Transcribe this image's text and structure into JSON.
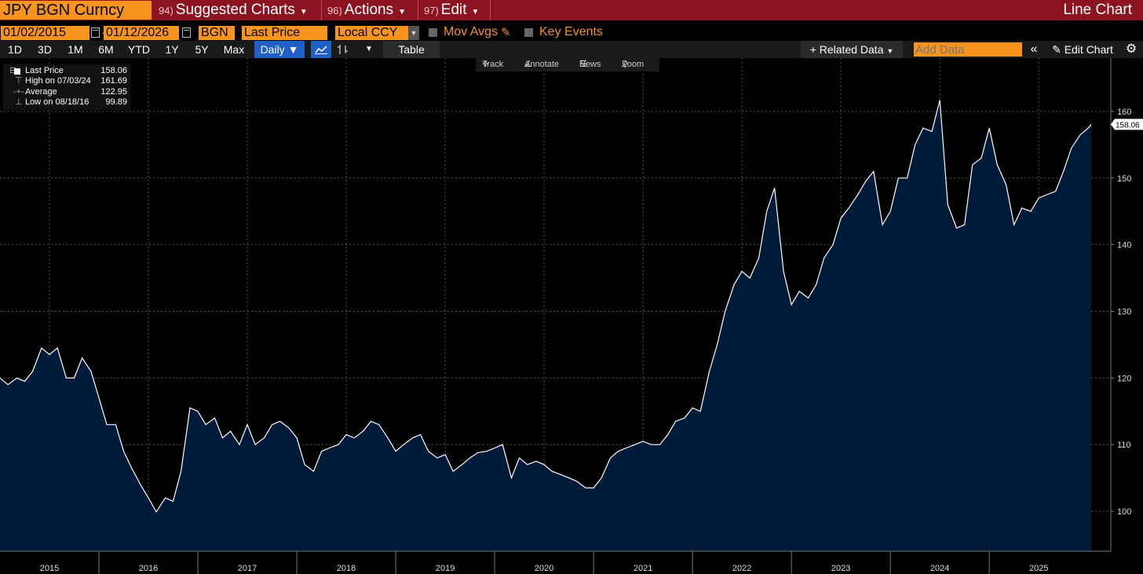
{
  "header": {
    "ticker": "JPY BGN Curncy",
    "menus": [
      {
        "num": "94)",
        "label": "Suggested Charts"
      },
      {
        "num": "96)",
        "label": "Actions"
      },
      {
        "num": "97)",
        "label": "Edit"
      }
    ],
    "chart_type": "Line Chart"
  },
  "controls": {
    "start_date": "01/02/2015",
    "end_date": "01/12/2026",
    "source": "BGN",
    "field": "Last Price",
    "currency": "Local CCY",
    "mov_avgs": "Mov Avgs",
    "key_events": "Key Events"
  },
  "toolbar": {
    "ranges": [
      "1D",
      "3D",
      "1M",
      "6M",
      "YTD",
      "1Y",
      "5Y",
      "Max"
    ],
    "frequency": "Daily",
    "table": "Table",
    "related_data": "Related Data",
    "add_data_placeholder": "Add Data",
    "edit_chart": "Edit Chart"
  },
  "chart_tools": {
    "track": "Track",
    "annotate": "Annotate",
    "news": "News",
    "zoom": "Zoom"
  },
  "legend": {
    "rows": [
      {
        "label": "Last Price",
        "value": "158.06"
      },
      {
        "label": "High on 07/03/24",
        "value": "161.69"
      },
      {
        "label": "Average",
        "value": "122.95"
      },
      {
        "label": "Low on 08/18/16",
        "value": "99.89"
      }
    ]
  },
  "colors": {
    "header_bg": "#8b1420",
    "accent": "#f7941d",
    "area_fill": "#001a3a",
    "line": "#ffffff",
    "selected": "#1f5fc6"
  },
  "chart_data": {
    "type": "area",
    "title": "JPY BGN Curncy",
    "ylim": [
      94,
      168
    ],
    "xlim": [
      2015.0,
      2026.03
    ],
    "yticks": [
      100,
      110,
      120,
      130,
      140,
      150,
      160
    ],
    "x_ticks": [
      "2015",
      "2016",
      "2017",
      "2018",
      "2019",
      "2020",
      "2021",
      "2022",
      "2023",
      "2024",
      "2025"
    ],
    "x_tick_positions": [
      2015.5,
      2016.5,
      2017.5,
      2018.5,
      2019.5,
      2020.5,
      2021.5,
      2022.5,
      2023.5,
      2024.5,
      2025.5
    ],
    "year_boundaries": [
      2016,
      2017,
      2018,
      2019,
      2020,
      2021,
      2022,
      2023,
      2024,
      2025
    ],
    "grid": true,
    "last_value": "158.06",
    "series": [
      {
        "name": "Last Price",
        "points": [
          [
            2015.0,
            120.0
          ],
          [
            2015.08,
            119.0
          ],
          [
            2015.17,
            120.0
          ],
          [
            2015.25,
            119.5
          ],
          [
            2015.33,
            121.0
          ],
          [
            2015.42,
            124.5
          ],
          [
            2015.5,
            123.5
          ],
          [
            2015.58,
            124.5
          ],
          [
            2015.67,
            120.0
          ],
          [
            2015.75,
            120.0
          ],
          [
            2015.83,
            123.0
          ],
          [
            2015.92,
            121.0
          ],
          [
            2016.0,
            117.0
          ],
          [
            2016.08,
            113.0
          ],
          [
            2016.17,
            113.0
          ],
          [
            2016.25,
            109.0
          ],
          [
            2016.33,
            106.5
          ],
          [
            2016.42,
            104.0
          ],
          [
            2016.5,
            102.0
          ],
          [
            2016.58,
            99.9
          ],
          [
            2016.67,
            102.0
          ],
          [
            2016.75,
            101.5
          ],
          [
            2016.83,
            106.0
          ],
          [
            2016.92,
            115.5
          ],
          [
            2017.0,
            115.0
          ],
          [
            2017.08,
            113.0
          ],
          [
            2017.17,
            114.0
          ],
          [
            2017.25,
            111.0
          ],
          [
            2017.33,
            112.0
          ],
          [
            2017.42,
            110.0
          ],
          [
            2017.5,
            113.0
          ],
          [
            2017.58,
            110.0
          ],
          [
            2017.67,
            111.0
          ],
          [
            2017.75,
            113.0
          ],
          [
            2017.83,
            113.5
          ],
          [
            2017.92,
            112.5
          ],
          [
            2018.0,
            111.0
          ],
          [
            2018.08,
            107.0
          ],
          [
            2018.17,
            106.0
          ],
          [
            2018.25,
            109.0
          ],
          [
            2018.33,
            109.5
          ],
          [
            2018.42,
            110.0
          ],
          [
            2018.5,
            111.5
          ],
          [
            2018.58,
            111.0
          ],
          [
            2018.67,
            112.0
          ],
          [
            2018.75,
            113.5
          ],
          [
            2018.83,
            113.0
          ],
          [
            2018.92,
            111.0
          ],
          [
            2019.0,
            109.0
          ],
          [
            2019.08,
            110.0
          ],
          [
            2019.17,
            111.0
          ],
          [
            2019.25,
            111.5
          ],
          [
            2019.33,
            109.0
          ],
          [
            2019.42,
            108.0
          ],
          [
            2019.5,
            108.5
          ],
          [
            2019.58,
            106.0
          ],
          [
            2019.67,
            107.0
          ],
          [
            2019.75,
            108.0
          ],
          [
            2019.83,
            108.8
          ],
          [
            2019.92,
            109.0
          ],
          [
            2020.0,
            109.5
          ],
          [
            2020.08,
            110.0
          ],
          [
            2020.17,
            105.0
          ],
          [
            2020.25,
            108.0
          ],
          [
            2020.33,
            107.0
          ],
          [
            2020.42,
            107.5
          ],
          [
            2020.5,
            107.0
          ],
          [
            2020.58,
            106.0
          ],
          [
            2020.67,
            105.5
          ],
          [
            2020.75,
            105.0
          ],
          [
            2020.83,
            104.5
          ],
          [
            2020.92,
            103.5
          ],
          [
            2021.0,
            103.5
          ],
          [
            2021.08,
            105.0
          ],
          [
            2021.17,
            108.0
          ],
          [
            2021.25,
            109.0
          ],
          [
            2021.33,
            109.5
          ],
          [
            2021.42,
            110.0
          ],
          [
            2021.5,
            110.5
          ],
          [
            2021.58,
            110.0
          ],
          [
            2021.67,
            110.0
          ],
          [
            2021.75,
            111.5
          ],
          [
            2021.83,
            113.5
          ],
          [
            2021.92,
            114.0
          ],
          [
            2022.0,
            115.5
          ],
          [
            2022.08,
            115.0
          ],
          [
            2022.17,
            121.0
          ],
          [
            2022.25,
            125.0
          ],
          [
            2022.33,
            130.0
          ],
          [
            2022.42,
            134.0
          ],
          [
            2022.5,
            136.0
          ],
          [
            2022.58,
            135.0
          ],
          [
            2022.67,
            138.0
          ],
          [
            2022.75,
            145.0
          ],
          [
            2022.83,
            148.5
          ],
          [
            2022.92,
            136.0
          ],
          [
            2023.0,
            131.0
          ],
          [
            2023.08,
            133.0
          ],
          [
            2023.17,
            132.0
          ],
          [
            2023.25,
            134.0
          ],
          [
            2023.33,
            138.0
          ],
          [
            2023.42,
            140.0
          ],
          [
            2023.5,
            144.0
          ],
          [
            2023.58,
            145.5
          ],
          [
            2023.67,
            147.5
          ],
          [
            2023.75,
            149.5
          ],
          [
            2023.83,
            151.0
          ],
          [
            2023.92,
            143.0
          ],
          [
            2024.0,
            145.0
          ],
          [
            2024.08,
            150.0
          ],
          [
            2024.17,
            150.0
          ],
          [
            2024.25,
            155.0
          ],
          [
            2024.33,
            157.5
          ],
          [
            2024.42,
            157.0
          ],
          [
            2024.5,
            161.7
          ],
          [
            2024.58,
            146.0
          ],
          [
            2024.67,
            142.5
          ],
          [
            2024.75,
            143.0
          ],
          [
            2024.83,
            152.0
          ],
          [
            2024.92,
            153.0
          ],
          [
            2025.0,
            157.5
          ],
          [
            2025.08,
            152.0
          ],
          [
            2025.17,
            149.0
          ],
          [
            2025.25,
            143.0
          ],
          [
            2025.33,
            145.5
          ],
          [
            2025.42,
            145.0
          ],
          [
            2025.5,
            147.0
          ],
          [
            2025.58,
            147.5
          ],
          [
            2025.67,
            148.0
          ],
          [
            2025.75,
            151.0
          ],
          [
            2025.83,
            154.5
          ],
          [
            2025.92,
            156.5
          ],
          [
            2026.0,
            157.5
          ],
          [
            2026.03,
            158.06
          ]
        ]
      }
    ]
  }
}
